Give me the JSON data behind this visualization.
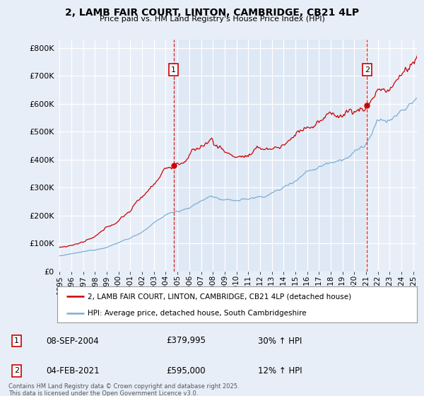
{
  "title": "2, LAMB FAIR COURT, LINTON, CAMBRIDGE, CB21 4LP",
  "subtitle": "Price paid vs. HM Land Registry's House Price Index (HPI)",
  "bg_color": "#e8eef8",
  "grid_color": "#ffffff",
  "red_color": "#cc0000",
  "blue_color": "#7bafd4",
  "sale1_date": "08-SEP-2004",
  "sale1_price": 379995,
  "sale1_label": "1",
  "sale1_pct": "30% ↑ HPI",
  "sale1_x": 2004.667,
  "sale2_date": "04-FEB-2021",
  "sale2_price": 595000,
  "sale2_label": "2",
  "sale2_pct": "12% ↑ HPI",
  "sale2_x": 2021.083,
  "legend_label_red": "2, LAMB FAIR COURT, LINTON, CAMBRIDGE, CB21 4LP (detached house)",
  "legend_label_blue": "HPI: Average price, detached house, South Cambridgeshire",
  "footer": "Contains HM Land Registry data © Crown copyright and database right 2025.\nThis data is licensed under the Open Government Licence v3.0.",
  "ylim": [
    0,
    830000
  ],
  "yticks": [
    0,
    100000,
    200000,
    300000,
    400000,
    500000,
    600000,
    700000,
    800000
  ],
  "xstart_year": 1995,
  "xend_year": 2025
}
